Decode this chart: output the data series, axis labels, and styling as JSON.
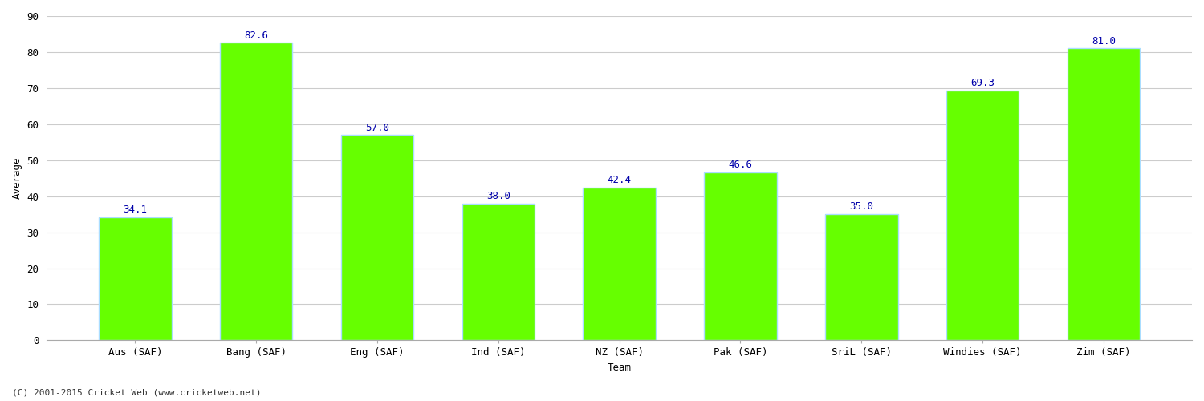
{
  "categories": [
    "Aus (SAF)",
    "Bang (SAF)",
    "Eng (SAF)",
    "Ind (SAF)",
    "NZ (SAF)",
    "Pak (SAF)",
    "SriL (SAF)",
    "Windies (SAF)",
    "Zim (SAF)"
  ],
  "values": [
    34.1,
    82.6,
    57.0,
    38.0,
    42.4,
    46.6,
    35.0,
    69.3,
    81.0
  ],
  "bar_color": "#66FF00",
  "bar_edge_color": "#aaddff",
  "label_color": "#0000AA",
  "xlabel": "Team",
  "ylabel": "Average",
  "ylim": [
    0,
    90
  ],
  "yticks": [
    0,
    10,
    20,
    30,
    40,
    50,
    60,
    70,
    80,
    90
  ],
  "grid_color": "#cccccc",
  "background_color": "#ffffff",
  "fig_background_color": "#ffffff",
  "label_fontsize": 9,
  "axis_label_fontsize": 9,
  "tick_fontsize": 9,
  "footer_text": "(C) 2001-2015 Cricket Web (www.cricketweb.net)"
}
